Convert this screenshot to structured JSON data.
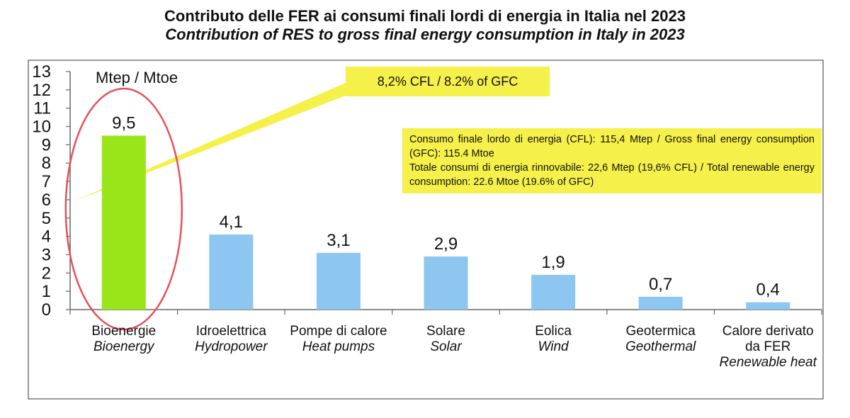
{
  "title_it": "Contributo delle FER ai consumi finali lordi di energia in Italia nel 2023",
  "title_en": "Contribution of RES to gross final energy consumption in Italy in 2023",
  "unit_label": "Mtep / Mtoe",
  "callout": "8,2% CFL / 8.2% of GFC",
  "info_lines": [
    "Consumo finale lordo di energia (CFL): 115,4 Mtep / Gross final energy consumption (GFC): 115.4 Mtoe",
    "Totale consumi di energia rinnovabile: 22,6 Mtep (19,6% CFL) / Total renewable energy consumption: 22.6 Mtoe (19.6% of GFC)"
  ],
  "colors": {
    "highlight_bar": "#99e51a",
    "bar": "#8ec6f2",
    "callout_bg": "#f5f04a",
    "ellipse": "#e8505a"
  },
  "chart_data": {
    "type": "bar",
    "categories": [
      {
        "it": "Bioenergie",
        "en": "Bioenergy"
      },
      {
        "it": "Idroelettrica",
        "en": "Hydropower"
      },
      {
        "it": "Pompe di calore",
        "en": "Heat pumps"
      },
      {
        "it": "Solare",
        "en": "Solar"
      },
      {
        "it": "Eolica",
        "en": "Wind"
      },
      {
        "it": "Geotermica",
        "en": "Geothermal"
      },
      {
        "it": "Calore derivato da FER",
        "en": "Renewable heat"
      }
    ],
    "values": [
      9.5,
      4.1,
      3.1,
      2.9,
      1.9,
      0.7,
      0.4
    ],
    "value_labels": [
      "9,5",
      "4,1",
      "3,1",
      "2,9",
      "1,9",
      "0,7",
      "0,4"
    ],
    "ylim": [
      0,
      13
    ],
    "yticks": [
      0,
      1,
      2,
      3,
      4,
      5,
      6,
      7,
      8,
      9,
      10,
      11,
      12,
      13
    ],
    "highlight_index": 0,
    "grid": false
  }
}
